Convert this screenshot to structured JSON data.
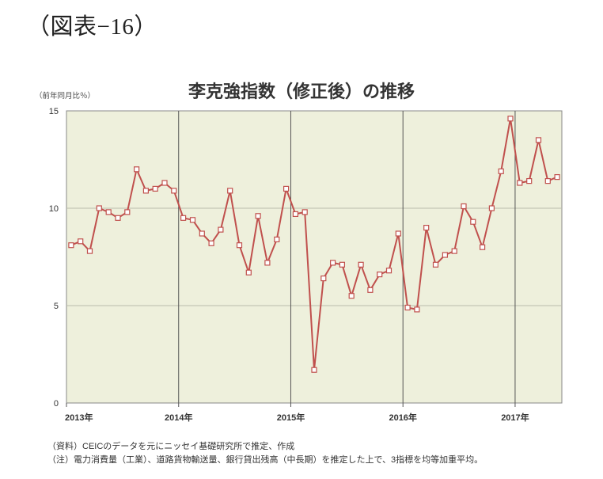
{
  "figure_label": "（図表−16）",
  "notes": {
    "source": "（資料）CEICのデータを元にニッセイ基礎研究所で推定、作成",
    "remark": "（注）電力消費量（工業）、道路貨物輸送量、銀行貸出残高（中長期）を推定した上で、3指標を均等加重平均。"
  },
  "colors": {
    "plot_background": "#eef0dc",
    "series_line": "#c0504d",
    "marker_fill": "#ffffff",
    "grid": "#b9bcab",
    "year_divider": "#555555"
  },
  "chart_data": {
    "type": "line",
    "title": "李克強指数（修正後）の推移",
    "ylabel": "（前年同月比％）",
    "xlabel": "",
    "ylim": [
      0,
      15
    ],
    "yticks": [
      0,
      5,
      10,
      15
    ],
    "year_ticks": [
      "2013年",
      "2014年",
      "2015年",
      "2016年",
      "2017年"
    ],
    "grid": true,
    "x_start": "2013-01",
    "series": [
      {
        "name": "",
        "marker": "square",
        "values": [
          8.1,
          8.3,
          7.8,
          10.0,
          9.8,
          9.5,
          9.8,
          12.0,
          10.9,
          11.0,
          11.3,
          10.9,
          9.5,
          9.4,
          8.7,
          8.2,
          8.9,
          10.9,
          8.1,
          6.7,
          9.6,
          7.2,
          8.4,
          11.0,
          9.7,
          9.8,
          1.7,
          6.4,
          7.2,
          7.1,
          5.5,
          7.1,
          5.8,
          6.6,
          6.8,
          8.7,
          4.9,
          4.8,
          9.0,
          7.1,
          7.6,
          7.8,
          10.1,
          9.3,
          8.0,
          10.0,
          11.9,
          14.6,
          11.3,
          11.4,
          13.5,
          11.4,
          11.6
        ]
      }
    ]
  }
}
